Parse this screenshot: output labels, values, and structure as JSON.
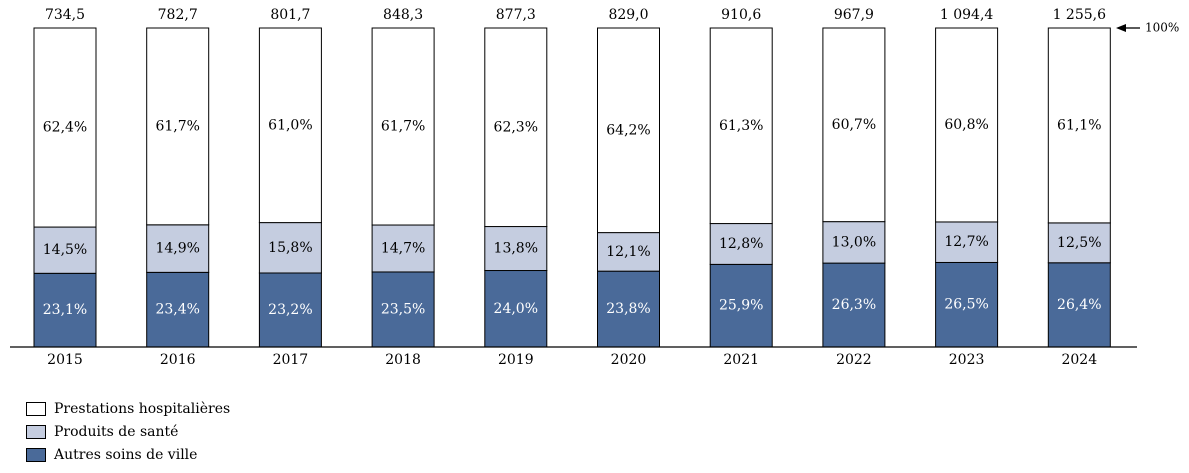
{
  "chart_data": {
    "type": "bar",
    "stacked": true,
    "normalized": true,
    "categories": [
      "2015",
      "2016",
      "2017",
      "2018",
      "2019",
      "2020",
      "2021",
      "2022",
      "2023",
      "2024"
    ],
    "totals": [
      "734,5",
      "782,7",
      "801,7",
      "848,3",
      "877,3",
      "829,0",
      "910,6",
      "967,9",
      "1 094,4",
      "1 255,6"
    ],
    "series": [
      {
        "name": "Autres soins de ville",
        "color": "#4a6a99",
        "text_color": "#ffffff",
        "values": [
          23.1,
          23.4,
          23.2,
          23.5,
          24.0,
          23.8,
          25.9,
          26.3,
          26.5,
          26.4
        ],
        "labels": [
          "23,1%",
          "23,4%",
          "23,2%",
          "23,5%",
          "24,0%",
          "23,8%",
          "25,9%",
          "26,3%",
          "26,5%",
          "26,4%"
        ]
      },
      {
        "name": "Produits de santé",
        "color": "#c5cde0",
        "text_color": "#000000",
        "values": [
          14.5,
          14.9,
          15.8,
          14.7,
          13.8,
          12.1,
          12.8,
          13.0,
          12.7,
          12.5
        ],
        "labels": [
          "14,5%",
          "14,9%",
          "15,8%",
          "14,7%",
          "13,8%",
          "12,1%",
          "12,8%",
          "13,0%",
          "12,7%",
          "12,5%"
        ]
      },
      {
        "name": "Prestations hospitalières",
        "color": "#ffffff",
        "text_color": "#000000",
        "values": [
          62.4,
          61.7,
          61.0,
          61.7,
          62.3,
          64.2,
          61.3,
          60.7,
          60.8,
          61.1
        ],
        "labels": [
          "62,4%",
          "61,7%",
          "61,0%",
          "61,7%",
          "62,3%",
          "64,2%",
          "61,3%",
          "60,7%",
          "60,8%",
          "61,1%"
        ]
      }
    ],
    "ylim": [
      0,
      100
    ],
    "reference_label": "100%",
    "legend_position": "bottom-left",
    "grid": false
  },
  "legend": [
    {
      "label": "Prestations hospitalières",
      "color": "#ffffff"
    },
    {
      "label": "Produits de santé",
      "color": "#c5cde0"
    },
    {
      "label": "Autres soins de ville",
      "color": "#4a6a99"
    }
  ]
}
